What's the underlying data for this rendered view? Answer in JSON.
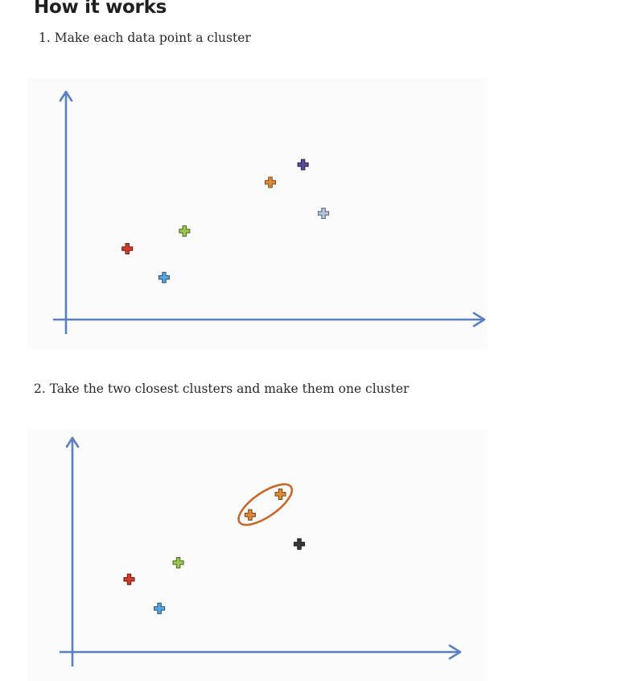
{
  "heading": "How it works",
  "steps": [
    {
      "text": "1. Make each data point a cluster"
    },
    {
      "text": "2. Take the two closest clusters and make them one cluster"
    }
  ],
  "colors": {
    "axis": "#5b80bd",
    "cluster_ring": "#c46a2a"
  },
  "chart_data": [
    {
      "type": "scatter",
      "title": "",
      "xlabel": "",
      "ylabel": "",
      "grid": false,
      "ticks": false,
      "xlim": [
        0,
        10
      ],
      "ylim": [
        0,
        10
      ],
      "series": [
        {
          "color": "#d23a2a",
          "x": [
            1.5
          ],
          "y": [
            3.2
          ]
        },
        {
          "color": "#5aa6dc",
          "x": [
            2.4
          ],
          "y": [
            1.9
          ]
        },
        {
          "color": "#9ac850",
          "x": [
            2.9
          ],
          "y": [
            4.0
          ]
        },
        {
          "color": "#e08a3c",
          "x": [
            5.0
          ],
          "y": [
            6.2
          ]
        },
        {
          "color": "#5a4a9a",
          "x": [
            5.8
          ],
          "y": [
            7.0
          ]
        },
        {
          "color": "#b4c4dc",
          "x": [
            6.3
          ],
          "y": [
            4.8
          ]
        }
      ],
      "clusters": []
    },
    {
      "type": "scatter",
      "title": "",
      "xlabel": "",
      "ylabel": "",
      "grid": false,
      "ticks": false,
      "xlim": [
        0,
        10
      ],
      "ylim": [
        0,
        10
      ],
      "series": [
        {
          "color": "#d23a2a",
          "x": [
            1.5
          ],
          "y": [
            3.5
          ]
        },
        {
          "color": "#5aa6dc",
          "x": [
            2.3
          ],
          "y": [
            2.1
          ]
        },
        {
          "color": "#9ac850",
          "x": [
            2.8
          ],
          "y": [
            4.3
          ]
        },
        {
          "color": "#e08a3c",
          "x": [
            4.7,
            5.5
          ],
          "y": [
            6.6,
            7.6
          ]
        },
        {
          "color": "#3a3a3a",
          "x": [
            6.0
          ],
          "y": [
            5.2
          ]
        }
      ],
      "clusters": [
        {
          "x": [
            4.7,
            5.5
          ],
          "y": [
            6.6,
            7.6
          ]
        }
      ]
    }
  ]
}
